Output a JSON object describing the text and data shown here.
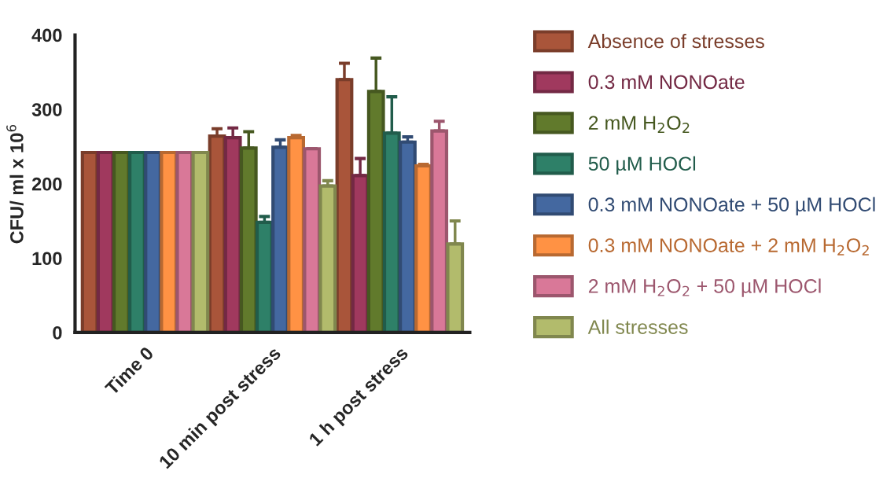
{
  "chart_data": {
    "type": "bar",
    "ylabel": "CFU/ ml x 10$^{6}$",
    "categories": [
      "Time 0",
      "10 min post stress",
      "1 h post stress"
    ],
    "ylim": [
      0,
      400
    ],
    "yticks": [
      0,
      100,
      200,
      300,
      400
    ],
    "grid": false,
    "legend": "right",
    "series": [
      {
        "name": "Absence of stresses",
        "color": "#a9553a",
        "values": [
          242,
          264,
          340
        ],
        "errors": [
          null,
          [
            264,
            274
          ],
          [
            340,
            362
          ]
        ]
      },
      {
        "name": "0.3 mM NONOate",
        "color": "#a0395e",
        "values": [
          242,
          262,
          211
        ],
        "errors": [
          null,
          [
            262,
            275
          ],
          [
            211,
            234
          ]
        ]
      },
      {
        "name": "2 mM H$_{2}$O$_{2}$",
        "color": "#617a2c",
        "values": [
          242,
          248,
          324
        ],
        "errors": [
          null,
          [
            248,
            270
          ],
          [
            324,
            369
          ]
        ]
      },
      {
        "name": "50 µM HOCl",
        "color": "#2e8068",
        "values": [
          242,
          148,
          268
        ],
        "errors": [
          null,
          [
            148,
            156
          ],
          [
            268,
            317
          ]
        ]
      },
      {
        "name": "0.3 mM NONOate + 50 µM HOCl",
        "color": "#4468a0",
        "values": [
          242,
          249,
          256
        ],
        "errors": [
          null,
          [
            249,
            259
          ],
          [
            256,
            263
          ]
        ]
      },
      {
        "name": "0.3 mM NONOate + 2 mM H$_{2}$O$_{2}$",
        "color": "#ff9244",
        "values": [
          242,
          262,
          224
        ],
        "errors": [
          null,
          [
            262,
            265
          ],
          [
            224,
            226
          ]
        ]
      },
      {
        "name": "2 mM H$_{2}$O$_{2}$ + 50 µM HOCl",
        "color": "#d97898",
        "values": [
          242,
          247,
          271
        ],
        "errors": [
          null,
          null,
          [
            271,
            284
          ]
        ]
      },
      {
        "name": "All stresses",
        "color": "#b2bb6c",
        "values": [
          242,
          197,
          119
        ],
        "errors": [
          null,
          [
            197,
            204
          ],
          [
            119,
            150
          ]
        ]
      }
    ]
  }
}
